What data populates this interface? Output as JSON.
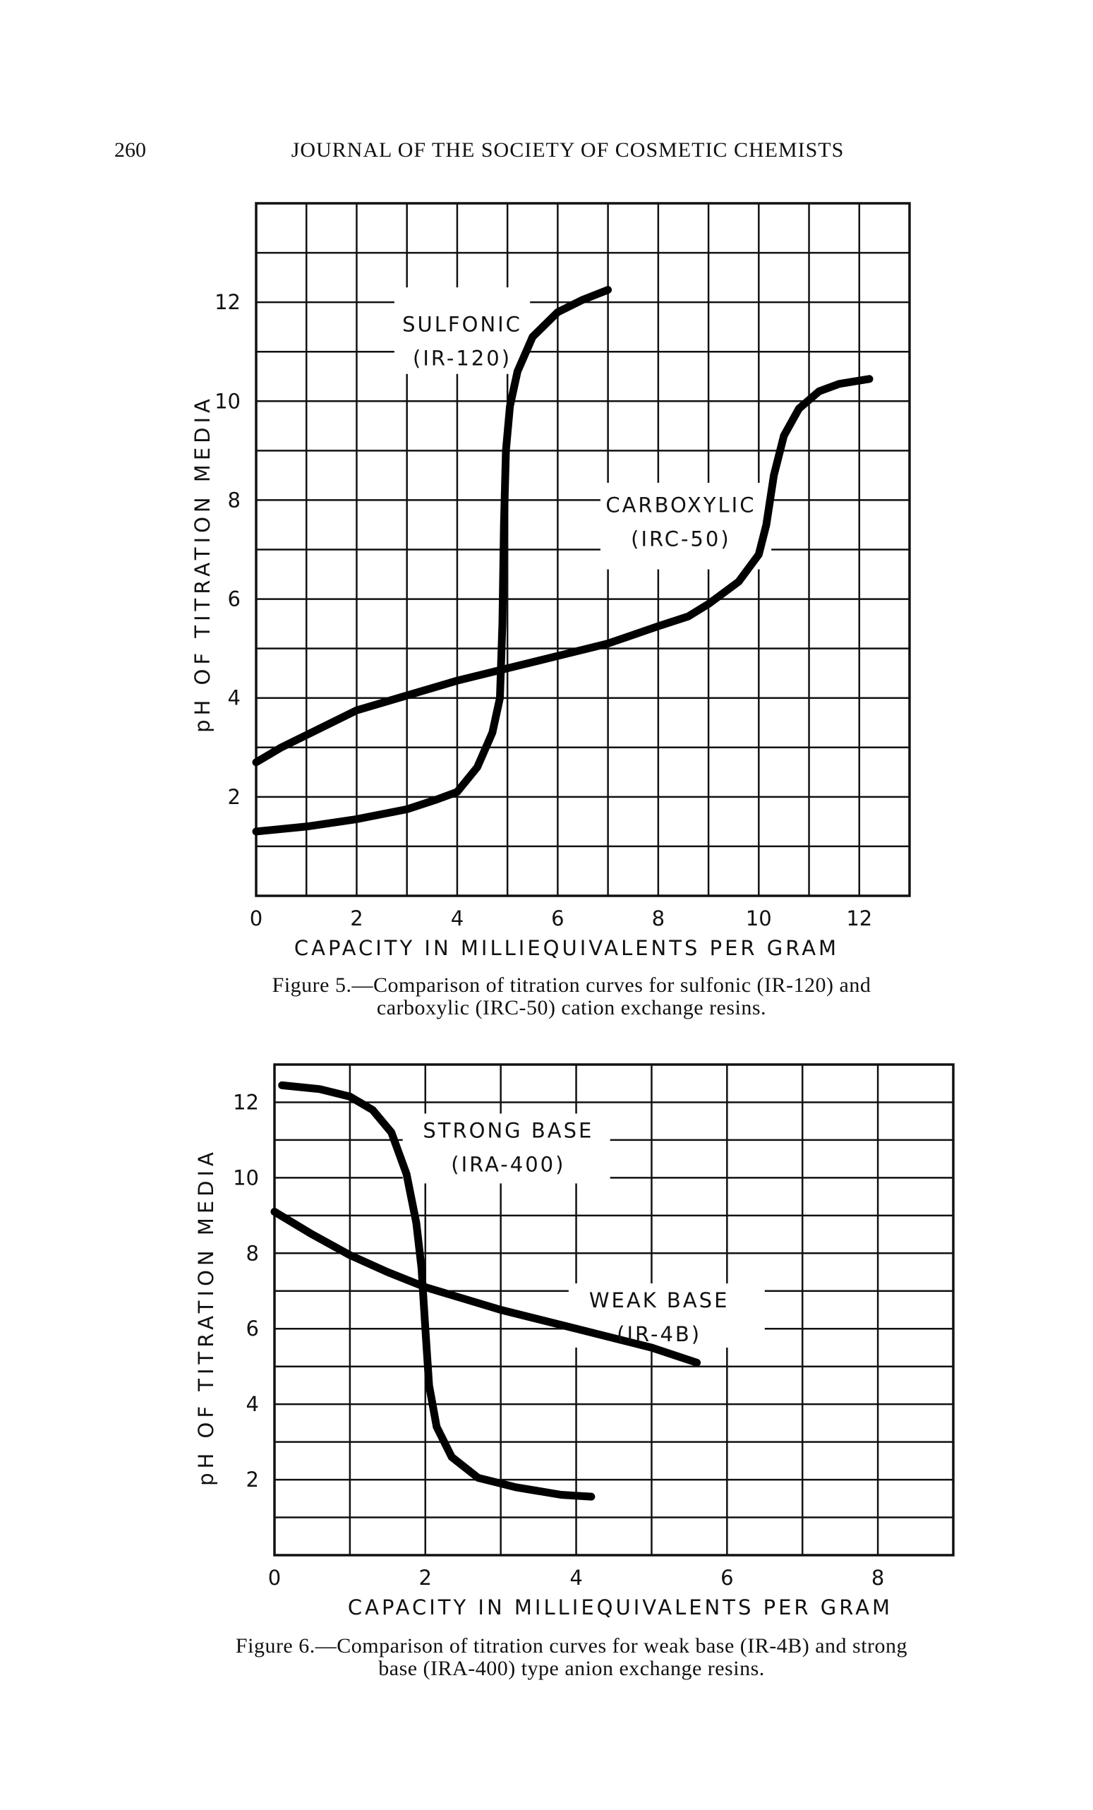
{
  "header": {
    "page_number": "260",
    "journal_title": "JOURNAL OF THE SOCIETY OF COSMETIC CHEMISTS"
  },
  "captions": {
    "figure5": [
      "Figure 5.—Comparison of titration curves for sulfonic (IR-120) and",
      "carboxylic (IRC-50) cation exchange resins."
    ],
    "figure6": [
      "Figure 6.—Comparison of titration curves for weak base (IR-4B) and strong",
      "base (IRA-400) type anion exchange resins."
    ]
  },
  "chart_data": [
    {
      "type": "line",
      "title": "Figure 5",
      "xlabel": "CAPACITY IN MILLIEQUIVALENTS PER GRAM",
      "ylabel": "pH OF TITRATION MEDIA",
      "xlim": [
        0,
        13
      ],
      "ylim": [
        0,
        14
      ],
      "grid": true,
      "xticks": [
        0,
        2,
        4,
        6,
        8,
        10,
        12
      ],
      "yticks": [
        2,
        4,
        6,
        8,
        10,
        12
      ],
      "series": [
        {
          "name": "SULFONIC (IR-120)",
          "label_lines": [
            "SULFONIC",
            "(IR-120)"
          ],
          "label_at": [
            4.1,
            11.55
          ],
          "mask": [
            2.75,
            5.45,
            10.55,
            12.3
          ],
          "points": [
            [
              0,
              1.3
            ],
            [
              1,
              1.4
            ],
            [
              2,
              1.55
            ],
            [
              3,
              1.75
            ],
            [
              3.6,
              1.95
            ],
            [
              4,
              2.1
            ],
            [
              4.4,
              2.6
            ],
            [
              4.7,
              3.3
            ],
            [
              4.85,
              4.0
            ],
            [
              4.9,
              5.5
            ],
            [
              4.93,
              7.5
            ],
            [
              4.97,
              9.0
            ],
            [
              5.05,
              9.9
            ],
            [
              5.2,
              10.6
            ],
            [
              5.5,
              11.3
            ],
            [
              6,
              11.8
            ],
            [
              6.5,
              12.05
            ],
            [
              7,
              12.25
            ]
          ]
        },
        {
          "name": "CARBOXYLIC (IRC-50)",
          "label_lines": [
            "CARBOXYLIC",
            "(IRC-50)"
          ],
          "label_at": [
            8.45,
            7.9
          ],
          "mask": [
            6.85,
            10.25,
            6.6,
            8.35
          ],
          "points": [
            [
              0,
              2.7
            ],
            [
              0.5,
              3.0
            ],
            [
              1,
              3.25
            ],
            [
              2,
              3.75
            ],
            [
              3,
              4.05
            ],
            [
              4,
              4.35
            ],
            [
              5,
              4.6
            ],
            [
              6,
              4.85
            ],
            [
              7,
              5.1
            ],
            [
              8,
              5.45
            ],
            [
              8.6,
              5.65
            ],
            [
              9,
              5.9
            ],
            [
              9.6,
              6.35
            ],
            [
              10,
              6.9
            ],
            [
              10.15,
              7.5
            ],
            [
              10.3,
              8.5
            ],
            [
              10.5,
              9.3
            ],
            [
              10.8,
              9.85
            ],
            [
              11.2,
              10.2
            ],
            [
              11.6,
              10.35
            ],
            [
              12.2,
              10.45
            ]
          ]
        }
      ]
    },
    {
      "type": "line",
      "title": "Figure 6",
      "xlabel": "CAPACITY IN MILLIEQUIVALENTS PER GRAM",
      "ylabel": "pH OF TITRATION MEDIA",
      "xlim": [
        0,
        9
      ],
      "ylim": [
        0,
        13
      ],
      "grid": true,
      "xticks": [
        0,
        2,
        4,
        6,
        8
      ],
      "yticks": [
        2,
        4,
        6,
        8,
        10,
        12
      ],
      "series": [
        {
          "name": "STRONG BASE (IRA-400)",
          "label_lines": [
            "STRONG BASE",
            "(IRA-400)"
          ],
          "label_at": [
            3.1,
            11.25
          ],
          "mask": [
            1.7,
            4.45,
            9.85,
            11.7
          ],
          "points": [
            [
              0.1,
              12.45
            ],
            [
              0.6,
              12.35
            ],
            [
              1,
              12.15
            ],
            [
              1.3,
              11.8
            ],
            [
              1.55,
              11.2
            ],
            [
              1.75,
              10.1
            ],
            [
              1.88,
              8.8
            ],
            [
              1.95,
              7.6
            ],
            [
              2.0,
              6.0
            ],
            [
              2.05,
              4.5
            ],
            [
              2.15,
              3.4
            ],
            [
              2.35,
              2.6
            ],
            [
              2.7,
              2.05
            ],
            [
              3.2,
              1.8
            ],
            [
              3.8,
              1.6
            ],
            [
              4.2,
              1.55
            ]
          ]
        },
        {
          "name": "WEAK BASE (IR-4B)",
          "label_lines": [
            "WEAK BASE",
            "(IR-4B)"
          ],
          "label_at": [
            5.1,
            6.75
          ],
          "mask": [
            3.9,
            6.5,
            5.5,
            7.2
          ],
          "points": [
            [
              0,
              9.1
            ],
            [
              0.5,
              8.5
            ],
            [
              1,
              7.95
            ],
            [
              1.5,
              7.5
            ],
            [
              2,
              7.1
            ],
            [
              3,
              6.5
            ],
            [
              4,
              6.0
            ],
            [
              5,
              5.5
            ],
            [
              5.6,
              5.1
            ]
          ]
        }
      ]
    }
  ]
}
